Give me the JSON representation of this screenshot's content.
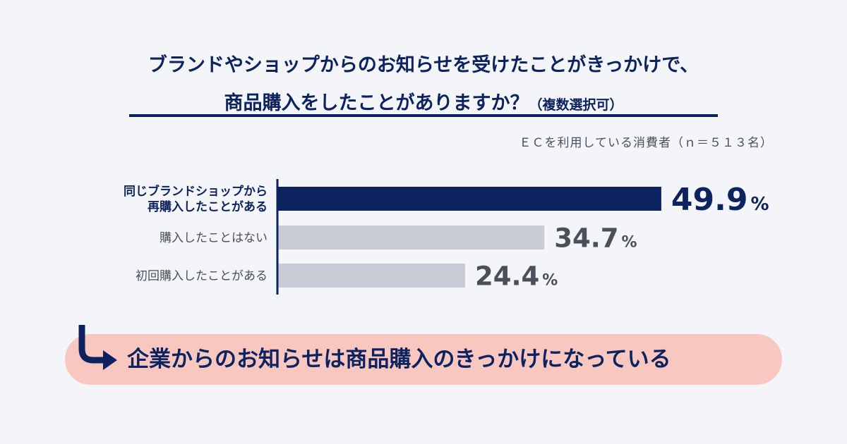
{
  "chart_data": {
    "type": "bar",
    "orientation": "horizontal",
    "title_line1": "ブランドやショップからのお知らせを受けたことがきっかけで、",
    "title_line2": "商品購入をしたことがありますか？",
    "title_note": "（複数選択可）",
    "subtitle": "ＥＣを利用している消費者（ｎ＝５１３名）",
    "categories": [
      [
        "同じブランドショップから",
        "再購入したことがある"
      ],
      [
        "購入したことはない"
      ],
      [
        "初回購入したことがある"
      ]
    ],
    "values": [
      49.9,
      34.7,
      24.4
    ],
    "value_labels": [
      "49.9",
      "34.7",
      "24.4"
    ],
    "unit": "%",
    "highlight_index": 0,
    "xlim": [
      0,
      55
    ],
    "colors": {
      "highlight": "#0d2360",
      "normal": "#c9cbd7",
      "highlight_text": "#0d2360",
      "normal_text": "#4a4f5a"
    }
  },
  "banner": {
    "text": "企業からのお知らせは商品購入のきっかけになっている",
    "background": "#f8c7c0",
    "icon": "arrow-turn-right-icon"
  }
}
